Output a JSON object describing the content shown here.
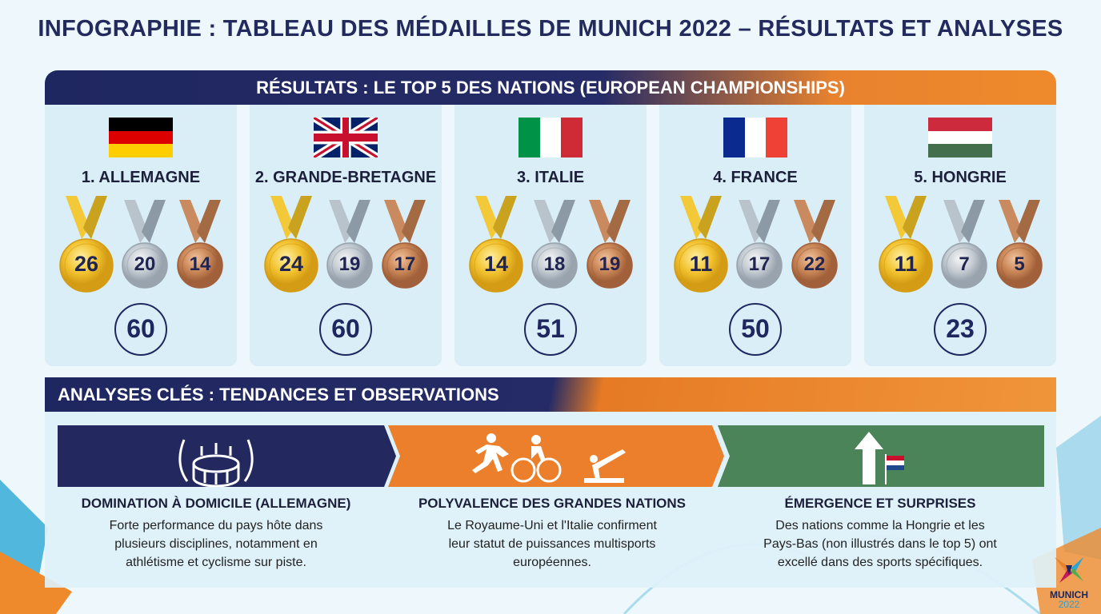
{
  "title": "INFOGRAPHIE : TABLEAU DES MÉDAILLES DE MUNICH 2022 – RÉSULTATS ET ANALYSES",
  "results_banner": "RÉSULTATS : LE TOP 5 DES NATIONS (EUROPEAN CHAMPIONSHIPS)",
  "nations": [
    {
      "label": "1. ALLEMAGNE",
      "flag": "germany-flag",
      "flag_dir": "h",
      "flag_colors": [
        "#000000",
        "#dd0000",
        "#ffce00"
      ],
      "gold": 26,
      "silver": 20,
      "bronze": 14,
      "total": 60
    },
    {
      "label": "2. GRANDE-BRETAGNE",
      "flag": "uk-flag",
      "flag_dir": "uk",
      "flag_colors": [
        "#012169",
        "#ffffff",
        "#c8102e"
      ],
      "gold": 24,
      "silver": 19,
      "bronze": 17,
      "total": 60
    },
    {
      "label": "3. ITALIE",
      "flag": "italy-flag",
      "flag_dir": "v",
      "flag_colors": [
        "#009246",
        "#ffffff",
        "#ce2b37"
      ],
      "gold": 14,
      "silver": 18,
      "bronze": 19,
      "total": 51
    },
    {
      "label": "4. FRANCE",
      "flag": "france-flag",
      "flag_dir": "v",
      "flag_colors": [
        "#0b2a8f",
        "#ffffff",
        "#ef4135"
      ],
      "gold": 11,
      "silver": 17,
      "bronze": 22,
      "total": 50
    },
    {
      "label": "5. HONGRIE",
      "flag": "hungary-flag",
      "flag_dir": "h",
      "flag_colors": [
        "#cd2a3e",
        "#ffffff",
        "#436f4d"
      ],
      "gold": 11,
      "silver": 7,
      "bronze": 5,
      "total": 23
    }
  ],
  "analysis_banner": "ANALYSES CLÉS : TENDANCES ET OBSERVATIONS",
  "analyses": [
    {
      "icon": "stadium-laurel-icon",
      "color": "#23295e",
      "title": "DOMINATION À DOMICILE (ALLEMAGNE)",
      "lines": [
        "Forte performance du pays hôte dans",
        "plusieurs disciplines, notamment en",
        "athlétisme et cyclisme sur piste."
      ]
    },
    {
      "icon": "multisport-icon",
      "color": "#ec7f2b",
      "title": "POLYVALENCE DES GRANDES NATIONS",
      "lines": [
        "Le Royaume-Uni et l'Italie confirment",
        "leur statut de puissances multisports",
        "européennes."
      ]
    },
    {
      "icon": "rising-arrow-netherlands-flag-icon",
      "color": "#4a8458",
      "title": "ÉMERGENCE ET SURPRISES",
      "lines": [
        "Des nations comme la Hongrie et les",
        "Pays-Bas (non illustrés dans le top 5) ont",
        "excellé dans des sports spécifiques."
      ]
    }
  ],
  "logo": {
    "line1": "MUNICH",
    "line2": "2022"
  }
}
